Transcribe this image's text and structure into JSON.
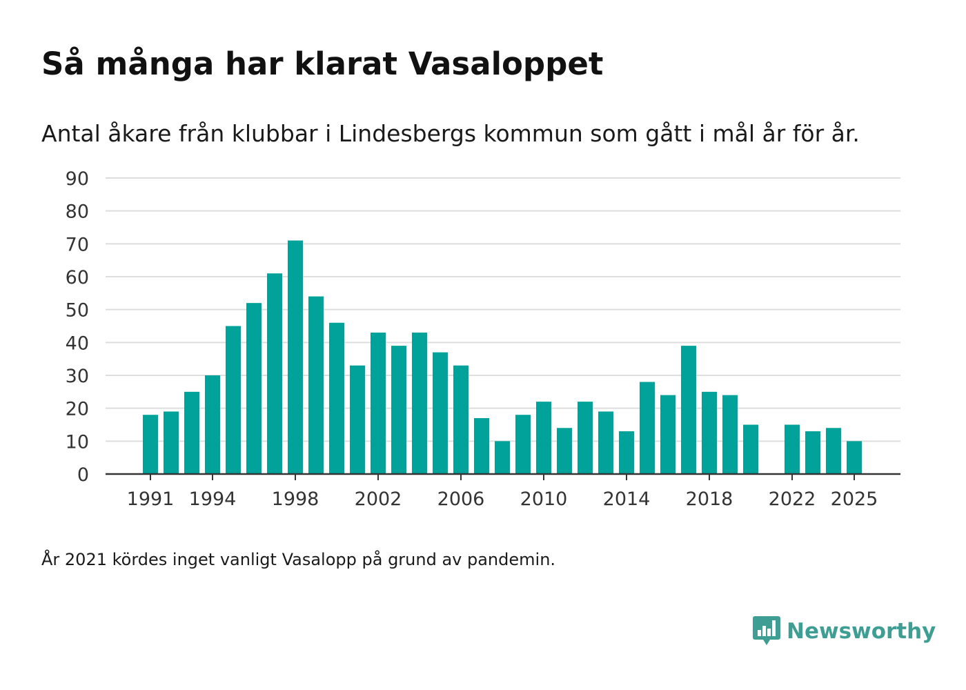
{
  "header": {
    "title": "Så många har klarat Vasaloppet",
    "subtitle": "Antal åkare från klubbar i Lindesbergs kommun som gått i mål år för år."
  },
  "footnote": "År 2021 kördes inget vanligt Vasalopp på grund av pandemin.",
  "brand": {
    "name": "Newsworthy",
    "logo_icon": "newsworthy-bar-chart-icon",
    "color": "#3e9e93"
  },
  "colors": {
    "bar": "#00a29a",
    "grid": "#dddddd",
    "axis": "#333333"
  },
  "chart_data": {
    "type": "bar",
    "title": "Så många har klarat Vasaloppet",
    "subtitle": "Antal åkare från klubbar i Lindesbergs kommun som gått i mål år för år.",
    "xlabel": "",
    "ylabel": "",
    "ylim": [
      0,
      90
    ],
    "yticks": [
      0,
      10,
      20,
      30,
      40,
      50,
      60,
      70,
      80,
      90
    ],
    "xticks": [
      1991,
      1994,
      1998,
      2002,
      2006,
      2010,
      2014,
      2018,
      2022,
      2025
    ],
    "grid": true,
    "categories": [
      1991,
      1992,
      1993,
      1994,
      1995,
      1996,
      1997,
      1998,
      1999,
      2000,
      2001,
      2002,
      2003,
      2004,
      2005,
      2006,
      2007,
      2008,
      2009,
      2010,
      2011,
      2012,
      2013,
      2014,
      2015,
      2016,
      2017,
      2018,
      2019,
      2020,
      2021,
      2022,
      2023,
      2024,
      2025
    ],
    "values": [
      18,
      19,
      25,
      30,
      45,
      52,
      61,
      71,
      54,
      46,
      33,
      43,
      39,
      43,
      37,
      33,
      17,
      10,
      18,
      22,
      14,
      22,
      19,
      13,
      28,
      24,
      39,
      25,
      24,
      15,
      null,
      15,
      13,
      14,
      10
    ]
  }
}
